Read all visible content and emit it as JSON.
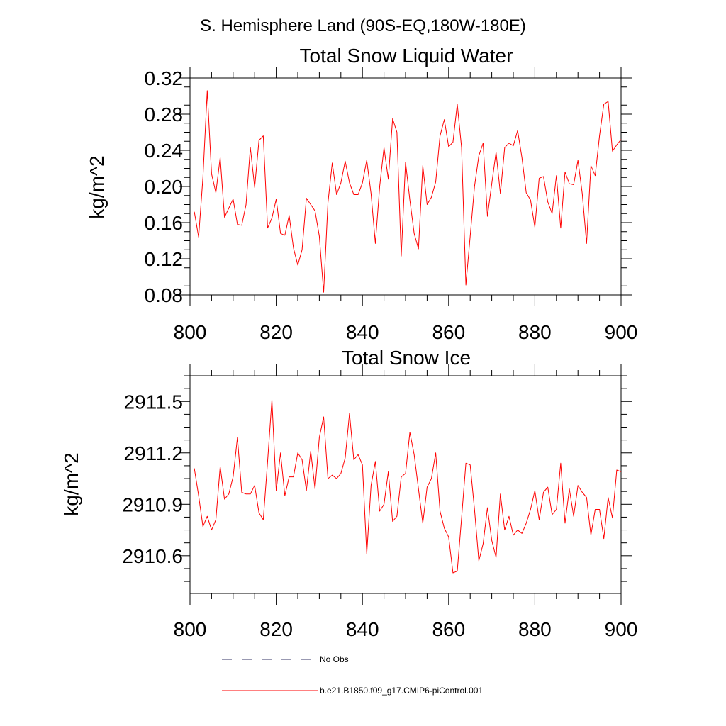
{
  "figure": {
    "suptitle": "S. Hemisphere Land (90S-EQ,180W-180E)"
  },
  "chart_data": [
    {
      "type": "line",
      "title": "Total Snow Liquid Water",
      "xlabel": "",
      "ylabel": "kg/m^2",
      "xlim": [
        800,
        900
      ],
      "ylim": [
        0.08,
        0.32
      ],
      "xticks": [
        800,
        820,
        840,
        860,
        880,
        900
      ],
      "xtick_labels": [
        "800",
        "820",
        "840",
        "860",
        "880",
        "900"
      ],
      "yticks": [
        0.08,
        0.12,
        0.16,
        0.2,
        0.24,
        0.28,
        0.32
      ],
      "ytick_labels": [
        "0.08",
        "0.12",
        "0.16",
        "0.20",
        "0.24",
        "0.28",
        "0.32"
      ],
      "grid": false,
      "series": [
        {
          "name": "b.e21.B1850.f09_g17.CMIP6-piControl.001",
          "color": "#ff0000",
          "x_start": 801,
          "x_step": 1,
          "values": [
            0.172,
            0.144,
            0.21,
            0.306,
            0.214,
            0.193,
            0.232,
            0.166,
            0.176,
            0.186,
            0.158,
            0.157,
            0.18,
            0.243,
            0.199,
            0.251,
            0.256,
            0.154,
            0.165,
            0.186,
            0.148,
            0.146,
            0.168,
            0.132,
            0.113,
            0.13,
            0.187,
            0.18,
            0.173,
            0.145,
            0.083,
            0.182,
            0.226,
            0.191,
            0.204,
            0.228,
            0.204,
            0.191,
            0.191,
            0.204,
            0.229,
            0.192,
            0.137,
            0.2,
            0.243,
            0.208,
            0.275,
            0.26,
            0.123,
            0.227,
            0.185,
            0.148,
            0.131,
            0.223,
            0.18,
            0.188,
            0.205,
            0.256,
            0.274,
            0.244,
            0.249,
            0.291,
            0.243,
            0.091,
            0.145,
            0.2,
            0.234,
            0.248,
            0.167,
            0.203,
            0.238,
            0.192,
            0.243,
            0.248,
            0.245,
            0.262,
            0.232,
            0.193,
            0.185,
            0.155,
            0.209,
            0.211,
            0.183,
            0.17,
            0.212,
            0.154,
            0.216,
            0.203,
            0.202,
            0.229,
            0.192,
            0.137,
            0.223,
            0.212,
            0.256,
            0.291,
            0.294,
            0.239,
            0.246,
            0.252
          ]
        },
        {
          "name": "No Obs",
          "color": "#333366",
          "values": []
        }
      ]
    },
    {
      "type": "line",
      "title": "Total Snow Ice",
      "xlabel": "",
      "ylabel": "kg/m^2",
      "xlim": [
        800,
        900
      ],
      "ylim": [
        2910.38,
        2911.65
      ],
      "xticks": [
        800,
        820,
        840,
        860,
        880,
        900
      ],
      "xtick_labels": [
        "800",
        "820",
        "840",
        "860",
        "880",
        "900"
      ],
      "yticks": [
        2910.6,
        2910.9,
        2911.2,
        2911.5
      ],
      "ytick_labels": [
        "2910.6",
        "2910.9",
        "2911.2",
        "2911.5"
      ],
      "grid": false,
      "series": [
        {
          "name": "b.e21.B1850.f09_g17.CMIP6-piControl.001",
          "color": "#ff0000",
          "x_start": 801,
          "x_step": 1,
          "values": [
            2911.11,
            2910.95,
            2910.77,
            2910.83,
            2910.75,
            2910.81,
            2911.12,
            2910.93,
            2910.96,
            2911.06,
            2911.29,
            2910.97,
            2910.96,
            2910.96,
            2911.01,
            2910.85,
            2910.81,
            2911.15,
            2911.51,
            2910.98,
            2911.2,
            2910.95,
            2911.06,
            2911.06,
            2911.2,
            2911.16,
            2910.98,
            2911.21,
            2910.99,
            2911.29,
            2911.41,
            2911.05,
            2911.07,
            2911.05,
            2911.08,
            2911.17,
            2911.43,
            2911.16,
            2911.19,
            2911.13,
            2910.61,
            2911.01,
            2911.15,
            2910.86,
            2910.9,
            2911.09,
            2910.8,
            2910.83,
            2911.06,
            2911.08,
            2911.32,
            2911.19,
            2910.99,
            2910.79,
            2911.0,
            2911.05,
            2911.2,
            2910.86,
            2910.76,
            2910.71,
            2910.5,
            2910.51,
            2910.82,
            2911.14,
            2911.13,
            2910.87,
            2910.57,
            2910.67,
            2910.88,
            2910.69,
            2910.59,
            2910.96,
            2910.75,
            2910.83,
            2910.72,
            2910.75,
            2910.73,
            2910.79,
            2910.87,
            2910.98,
            2910.81,
            2910.97,
            2911.0,
            2910.84,
            2910.87,
            2911.14,
            2910.79,
            2910.99,
            2910.83,
            2911.01,
            2910.97,
            2910.94,
            2910.72,
            2910.87,
            2910.87,
            2910.7,
            2910.94,
            2910.82,
            2911.1,
            2911.09
          ]
        }
      ]
    }
  ],
  "legend": {
    "placement": "bottom",
    "items": [
      {
        "label": "No Obs",
        "style": "dashed",
        "color": "#333366"
      },
      {
        "label": "b.e21.B1850.f09_g17.CMIP6-piControl.001",
        "style": "solid",
        "color": "#ff0000"
      }
    ]
  }
}
